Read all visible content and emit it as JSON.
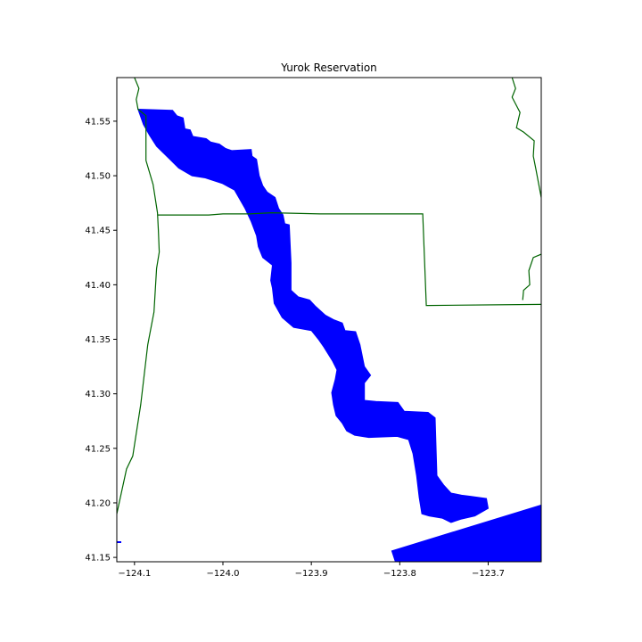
{
  "title": "Yurok Reservation",
  "colors": {
    "reservation_fill": "#0000ff",
    "boundary_line": "#006400",
    "frame": "#000000",
    "background": "#ffffff"
  },
  "axes": {
    "x_range": [
      -124.12,
      -123.64
    ],
    "y_range": [
      41.146,
      41.59
    ],
    "x_ticks": [
      {
        "value": -124.1,
        "label": "−124.1"
      },
      {
        "value": -124.0,
        "label": "−124.0"
      },
      {
        "value": -123.9,
        "label": "−123.9"
      },
      {
        "value": -123.8,
        "label": "−123.8"
      },
      {
        "value": -123.7,
        "label": "−123.7"
      }
    ],
    "y_ticks": [
      {
        "value": 41.55,
        "label": "41.55"
      },
      {
        "value": 41.5,
        "label": "41.50"
      },
      {
        "value": 41.45,
        "label": "41.45"
      },
      {
        "value": 41.4,
        "label": "41.40"
      },
      {
        "value": 41.35,
        "label": "41.35"
      },
      {
        "value": 41.3,
        "label": "41.30"
      },
      {
        "value": 41.25,
        "label": "41.25"
      },
      {
        "value": 41.2,
        "label": "41.20"
      },
      {
        "value": 41.15,
        "label": "41.15"
      }
    ]
  },
  "map_data": {
    "reservation_polygons": [
      [
        [
          -124.096,
          41.561
        ],
        [
          -124.057,
          41.56
        ],
        [
          -124.052,
          41.555
        ],
        [
          -124.045,
          41.553
        ],
        [
          -124.043,
          41.543
        ],
        [
          -124.037,
          41.542
        ],
        [
          -124.034,
          41.536
        ],
        [
          -124.019,
          41.534
        ],
        [
          -124.014,
          41.531
        ],
        [
          -124.004,
          41.529
        ],
        [
          -123.997,
          41.525
        ],
        [
          -123.99,
          41.523
        ],
        [
          -123.968,
          41.524
        ],
        [
          -123.967,
          41.518
        ],
        [
          -123.962,
          41.515
        ],
        [
          -123.959,
          41.5
        ],
        [
          -123.955,
          41.491
        ],
        [
          -123.95,
          41.485
        ],
        [
          -123.941,
          41.48
        ],
        [
          -123.937,
          41.47
        ],
        [
          -123.932,
          41.464
        ],
        [
          -123.93,
          41.456
        ],
        [
          -123.925,
          41.455
        ],
        [
          -123.923,
          41.42
        ],
        [
          -123.923,
          41.395
        ],
        [
          -123.915,
          41.389
        ],
        [
          -123.902,
          41.386
        ],
        [
          -123.895,
          41.38
        ],
        [
          -123.884,
          41.372
        ],
        [
          -123.875,
          41.368
        ],
        [
          -123.865,
          41.365
        ],
        [
          -123.862,
          41.358
        ],
        [
          -123.85,
          41.357
        ],
        [
          -123.845,
          41.345
        ],
        [
          -123.84,
          41.325
        ],
        [
          -123.833,
          41.317
        ],
        [
          -123.84,
          41.31
        ],
        [
          -123.84,
          41.294
        ],
        [
          -123.827,
          41.293
        ],
        [
          -123.802,
          41.292
        ],
        [
          -123.795,
          41.284
        ],
        [
          -123.768,
          41.283
        ],
        [
          -123.76,
          41.278
        ],
        [
          -123.758,
          41.225
        ],
        [
          -123.75,
          41.216
        ],
        [
          -123.742,
          41.209
        ],
        [
          -123.73,
          41.207
        ],
        [
          -123.72,
          41.206
        ],
        [
          -123.702,
          41.204
        ],
        [
          -123.7,
          41.195
        ],
        [
          -123.715,
          41.188
        ],
        [
          -123.731,
          41.185
        ],
        [
          -123.742,
          41.182
        ],
        [
          -123.752,
          41.186
        ],
        [
          -123.767,
          41.188
        ],
        [
          -123.775,
          41.19
        ],
        [
          -123.778,
          41.205
        ],
        [
          -123.781,
          41.225
        ],
        [
          -123.785,
          41.245
        ],
        [
          -123.79,
          41.258
        ],
        [
          -123.803,
          41.261
        ],
        [
          -123.835,
          41.26
        ],
        [
          -123.851,
          41.262
        ],
        [
          -123.86,
          41.266
        ],
        [
          -123.865,
          41.273
        ],
        [
          -123.872,
          41.28
        ],
        [
          -123.875,
          41.29
        ],
        [
          -123.877,
          41.301
        ],
        [
          -123.873,
          41.313
        ],
        [
          -123.871,
          41.322
        ],
        [
          -123.876,
          41.33
        ],
        [
          -123.886,
          41.343
        ],
        [
          -123.892,
          41.35
        ],
        [
          -123.9,
          41.358
        ],
        [
          -123.92,
          41.361
        ],
        [
          -123.933,
          41.37
        ],
        [
          -123.942,
          41.383
        ],
        [
          -123.944,
          41.397
        ],
        [
          -123.946,
          41.404
        ],
        [
          -123.944,
          41.418
        ],
        [
          -123.955,
          41.425
        ],
        [
          -123.96,
          41.435
        ],
        [
          -123.962,
          41.445
        ],
        [
          -123.968,
          41.458
        ],
        [
          -123.975,
          41.47
        ],
        [
          -123.987,
          41.487
        ],
        [
          -124.001,
          41.493
        ],
        [
          -124.02,
          41.498
        ],
        [
          -124.035,
          41.5
        ],
        [
          -124.05,
          41.507
        ],
        [
          -124.06,
          41.515
        ],
        [
          -124.075,
          41.527
        ],
        [
          -124.083,
          41.537
        ],
        [
          -124.09,
          41.547
        ],
        [
          -124.096,
          41.561
        ]
      ],
      [
        [
          -123.809,
          41.156
        ],
        [
          -123.64,
          41.198
        ],
        [
          -123.64,
          41.146
        ],
        [
          -123.805,
          41.146
        ]
      ]
    ],
    "boundary_lines": [
      [
        [
          -124.1,
          41.59
        ],
        [
          -124.095,
          41.58
        ],
        [
          -124.098,
          41.57
        ],
        [
          -124.096,
          41.561
        ],
        [
          -124.087,
          41.555
        ],
        [
          -124.087,
          41.524
        ],
        [
          -124.087,
          41.514
        ],
        [
          -124.079,
          41.492
        ],
        [
          -124.074,
          41.466
        ],
        [
          -124.073,
          41.45
        ],
        [
          -124.072,
          41.43
        ],
        [
          -124.075,
          41.415
        ],
        [
          -124.078,
          41.375
        ],
        [
          -124.085,
          41.345
        ],
        [
          -124.093,
          41.29
        ],
        [
          -124.102,
          41.243
        ],
        [
          -124.109,
          41.231
        ],
        [
          -124.12,
          41.19
        ]
      ],
      [
        [
          -124.074,
          41.464
        ],
        [
          -124.016,
          41.464
        ],
        [
          -124.0,
          41.465
        ],
        [
          -123.97,
          41.465
        ],
        [
          -123.945,
          41.466
        ],
        [
          -123.89,
          41.465
        ],
        [
          -123.853,
          41.465
        ],
        [
          -123.83,
          41.465
        ],
        [
          -123.774,
          41.465
        ],
        [
          -123.77,
          41.381
        ],
        [
          -123.64,
          41.382
        ]
      ],
      [
        [
          -123.673,
          41.59
        ],
        [
          -123.669,
          41.58
        ],
        [
          -123.673,
          41.572
        ],
        [
          -123.664,
          41.558
        ],
        [
          -123.668,
          41.544
        ],
        [
          -123.66,
          41.54
        ],
        [
          -123.648,
          41.532
        ],
        [
          -123.649,
          41.518
        ],
        [
          -123.646,
          41.506
        ],
        [
          -123.64,
          41.48
        ]
      ],
      [
        [
          -123.64,
          41.428
        ],
        [
          -123.649,
          41.425
        ],
        [
          -123.654,
          41.413
        ],
        [
          -123.653,
          41.4
        ],
        [
          -123.66,
          41.395
        ],
        [
          -123.661,
          41.386
        ]
      ]
    ],
    "markers": [
      {
        "lon": -124.118,
        "lat": 41.164
      }
    ]
  }
}
